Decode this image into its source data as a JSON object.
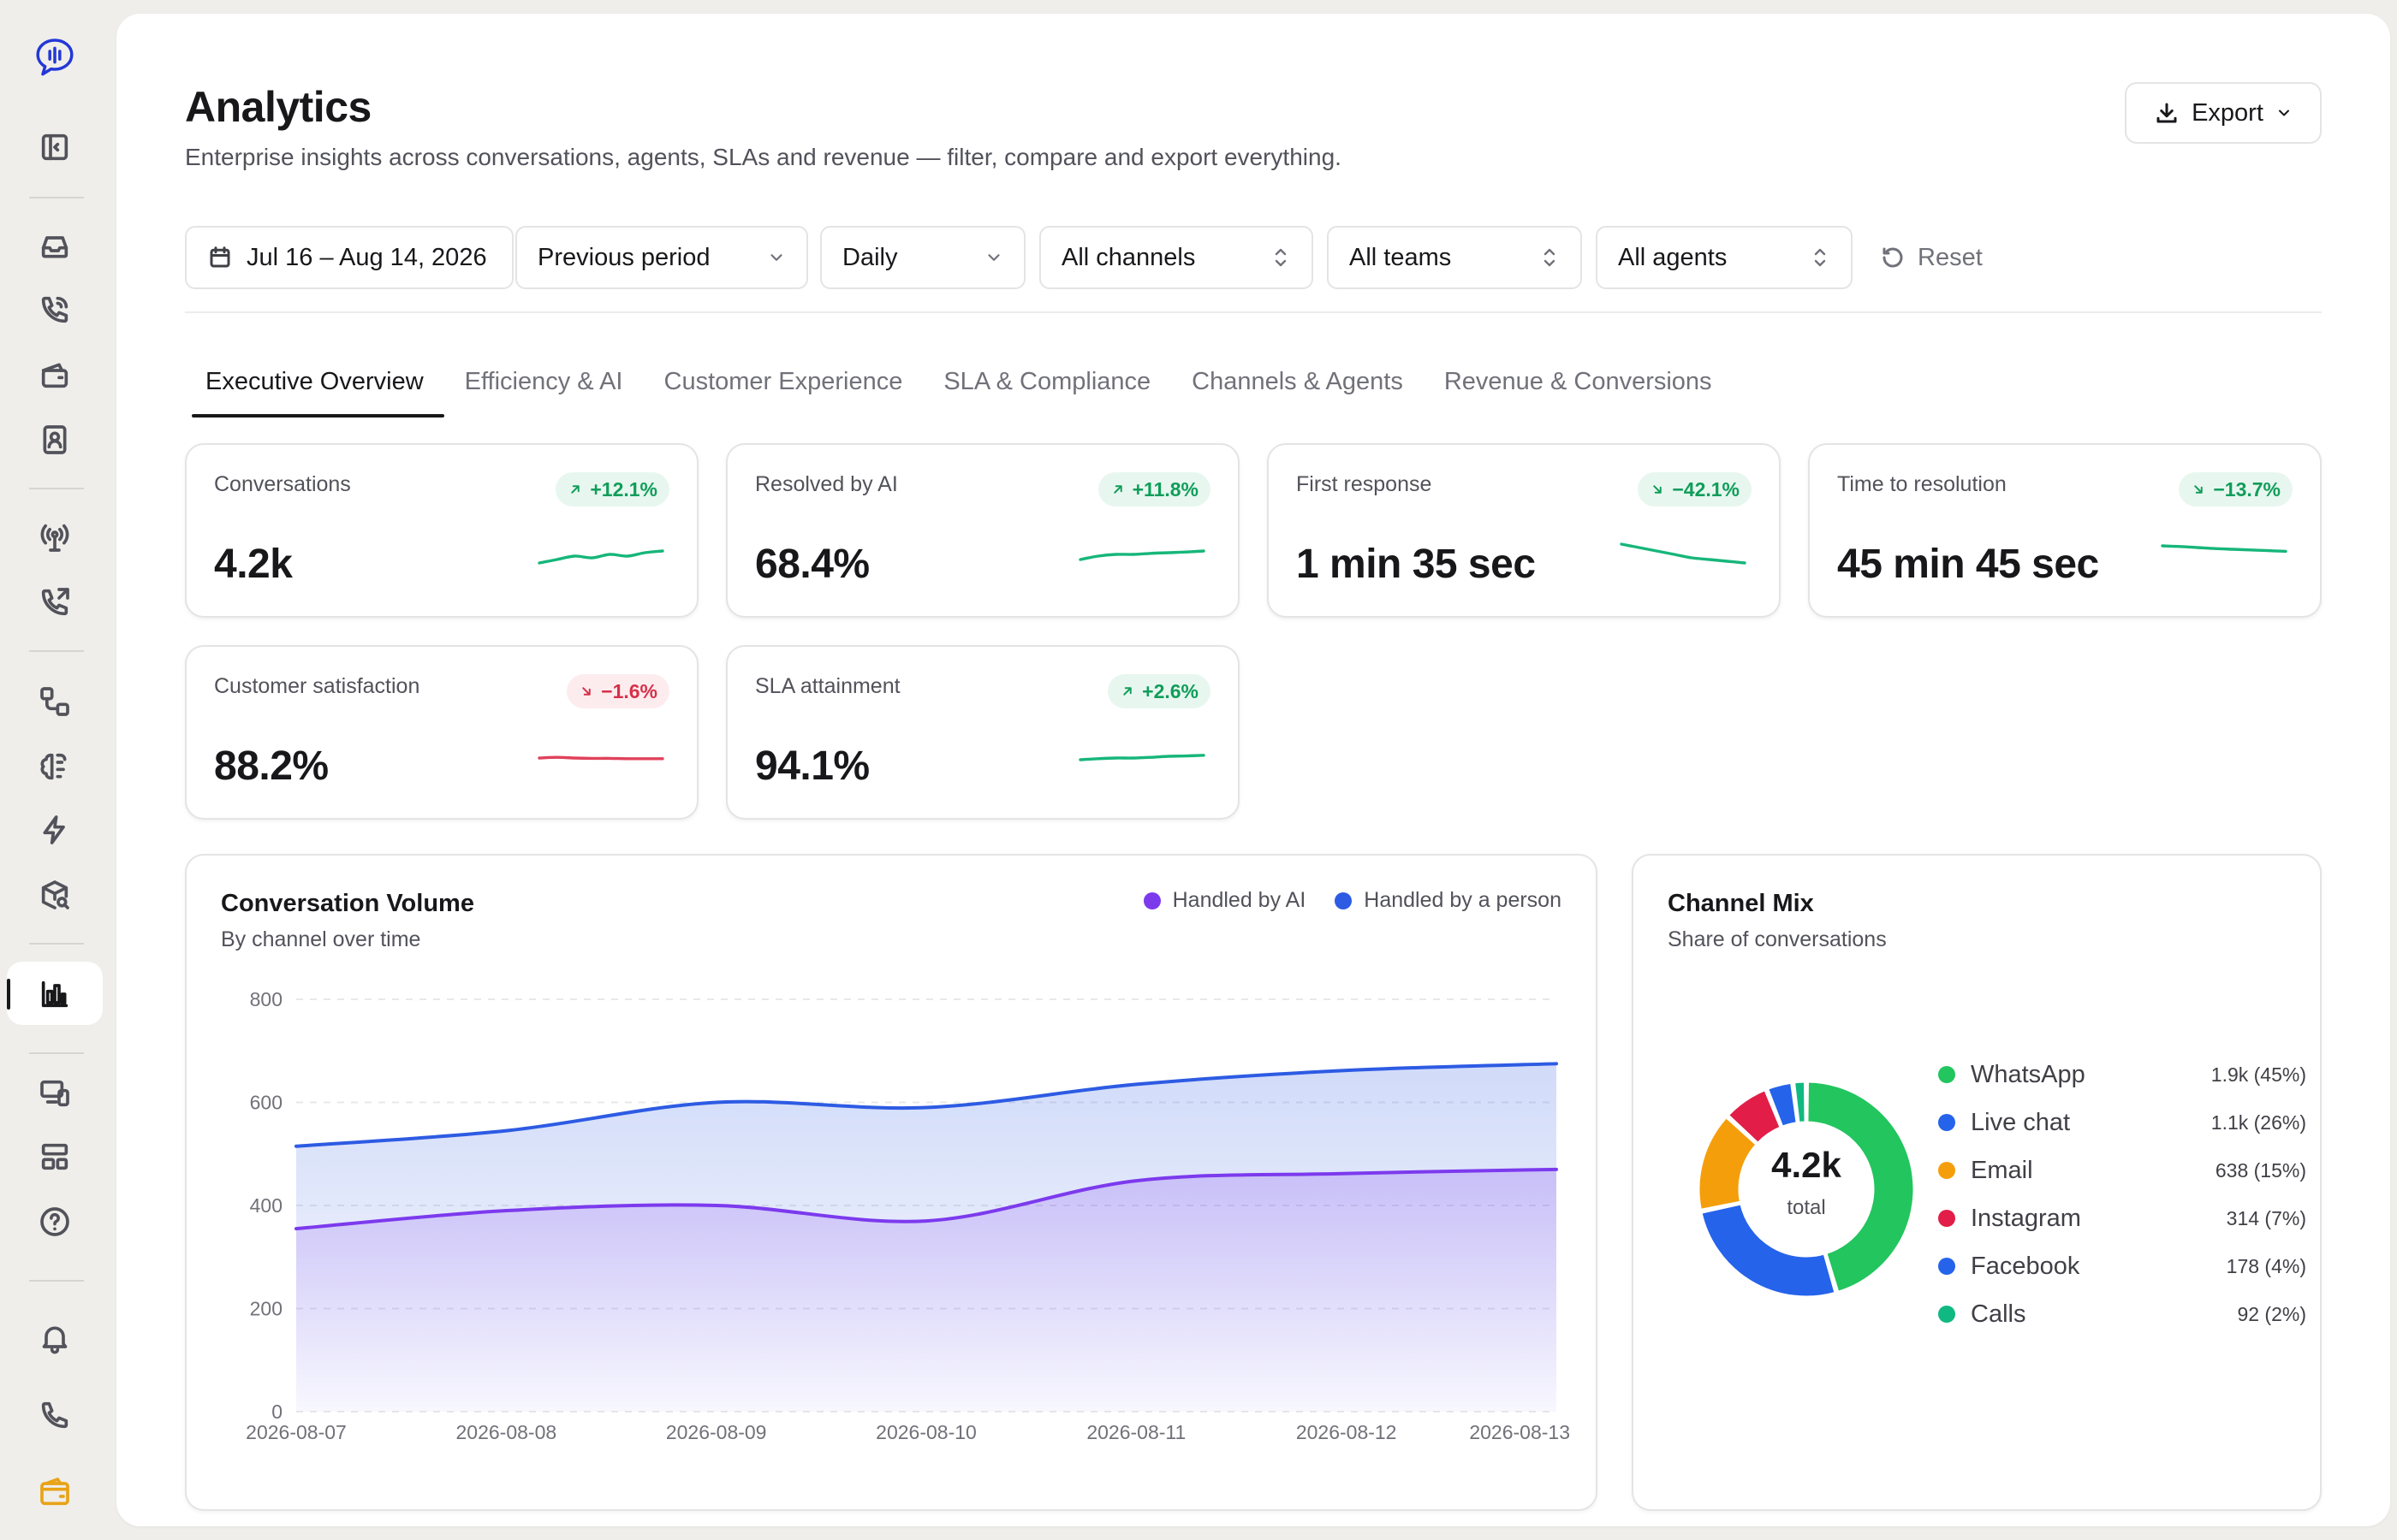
{
  "sidebar": {
    "icons": [
      "logo-icon",
      "sidebar-toggle-icon",
      "inbox-icon",
      "phone-call-icon",
      "tickets-icon",
      "contacts-icon",
      "broadcast-icon",
      "outbound-call-icon",
      "workflows-icon",
      "ai-brain-icon",
      "automation-icon",
      "knowledge-icon",
      "analytics-icon",
      "devices-icon",
      "layout-icon",
      "help-icon",
      "bell-icon",
      "phone-icon",
      "wallet-icon"
    ],
    "active": "analytics-icon",
    "accent": "#2338d6"
  },
  "header": {
    "title": "Analytics",
    "subtitle": "Enterprise insights across conversations, agents, SLAs and revenue — filter, compare and export everything.",
    "export_label": "Export"
  },
  "filters": {
    "date_range": "Jul 16 – Aug 14, 2026",
    "compare": "Previous period",
    "granularity": "Daily",
    "channels": "All channels",
    "teams": "All teams",
    "agents": "All agents",
    "reset_label": "Reset"
  },
  "tabs": [
    {
      "label": "Executive Overview",
      "active": true
    },
    {
      "label": "Efficiency & AI",
      "active": false
    },
    {
      "label": "Customer Experience",
      "active": false
    },
    {
      "label": "SLA & Compliance",
      "active": false
    },
    {
      "label": "Channels & Agents",
      "active": false
    },
    {
      "label": "Revenue & Conversions",
      "active": false
    }
  ],
  "kpis": [
    {
      "label": "Conversations",
      "value": "4.2k",
      "delta": "+12.1%",
      "direction": "up",
      "color": "#16b67a",
      "spark": [
        0.3,
        0.4,
        0.5,
        0.45,
        0.55,
        0.5,
        0.6,
        0.65
      ]
    },
    {
      "label": "Resolved by AI",
      "value": "68.4%",
      "delta": "+11.8%",
      "direction": "up",
      "color": "#16b67a",
      "spark": [
        0.4,
        0.5,
        0.55,
        0.55,
        0.58,
        0.6,
        0.62,
        0.65
      ]
    },
    {
      "label": "First response",
      "value": "1 min 35 sec",
      "delta": "−42.1%",
      "direction": "down",
      "color": "#16b67a",
      "spark": [
        0.85,
        0.75,
        0.65,
        0.55,
        0.45,
        0.4,
        0.35,
        0.3
      ]
    },
    {
      "label": "Time to resolution",
      "value": "45 min 45 sec",
      "delta": "−13.7%",
      "direction": "down",
      "color": "#16b67a",
      "spark": [
        0.8,
        0.78,
        0.75,
        0.72,
        0.7,
        0.68,
        0.66,
        0.64
      ]
    },
    {
      "label": "Customer satisfaction",
      "value": "88.2%",
      "delta": "−1.6%",
      "direction": "down",
      "color": "#e0415a",
      "spark": [
        0.5,
        0.52,
        0.5,
        0.49,
        0.49,
        0.48,
        0.48,
        0.48
      ]
    },
    {
      "label": "SLA attainment",
      "value": "94.1%",
      "delta": "+2.6%",
      "direction": "up",
      "color": "#16b67a",
      "spark": [
        0.45,
        0.48,
        0.5,
        0.5,
        0.52,
        0.55,
        0.56,
        0.58
      ]
    }
  ],
  "volume_card": {
    "title": "Conversation Volume",
    "subtitle": "By channel over time"
  },
  "mix_card": {
    "title": "Channel Mix",
    "subtitle": "Share of conversations",
    "total_value": "4.2k",
    "total_label": "total"
  },
  "chart_data": [
    {
      "type": "area",
      "title": "Conversation Volume",
      "subtitle": "By channel over time",
      "x": [
        "2026-08-07",
        "2026-08-08",
        "2026-08-09",
        "2026-08-10",
        "2026-08-11",
        "2026-08-12",
        "2026-08-13"
      ],
      "ylim": [
        0,
        800
      ],
      "yticks": [
        0,
        200,
        400,
        600,
        800
      ],
      "grid": true,
      "legend": "top-right",
      "series": [
        {
          "name": "Handled by AI",
          "color": "#7c3aed",
          "values": [
            355,
            390,
            400,
            370,
            448,
            462,
            470
          ]
        },
        {
          "name": "Handled by a person",
          "color": "#2d5be3",
          "values": [
            515,
            545,
            600,
            590,
            635,
            662,
            675
          ]
        }
      ]
    },
    {
      "type": "pie",
      "title": "Channel Mix",
      "subtitle": "Share of conversations",
      "legend": "right",
      "slices": [
        {
          "label": "WhatsApp",
          "display": "1.9k (45%)",
          "percent": 45,
          "color": "#22c55e"
        },
        {
          "label": "Live chat",
          "display": "1.1k (26%)",
          "percent": 26,
          "color": "#2563eb"
        },
        {
          "label": "Email",
          "display": "638 (15%)",
          "percent": 15,
          "color": "#f59e0b"
        },
        {
          "label": "Instagram",
          "display": "314 (7%)",
          "percent": 7,
          "color": "#e11d48"
        },
        {
          "label": "Facebook",
          "display": "178 (4%)",
          "percent": 4,
          "color": "#2563eb"
        },
        {
          "label": "Calls",
          "display": "92 (2%)",
          "percent": 2,
          "color": "#10b981"
        }
      ]
    }
  ]
}
